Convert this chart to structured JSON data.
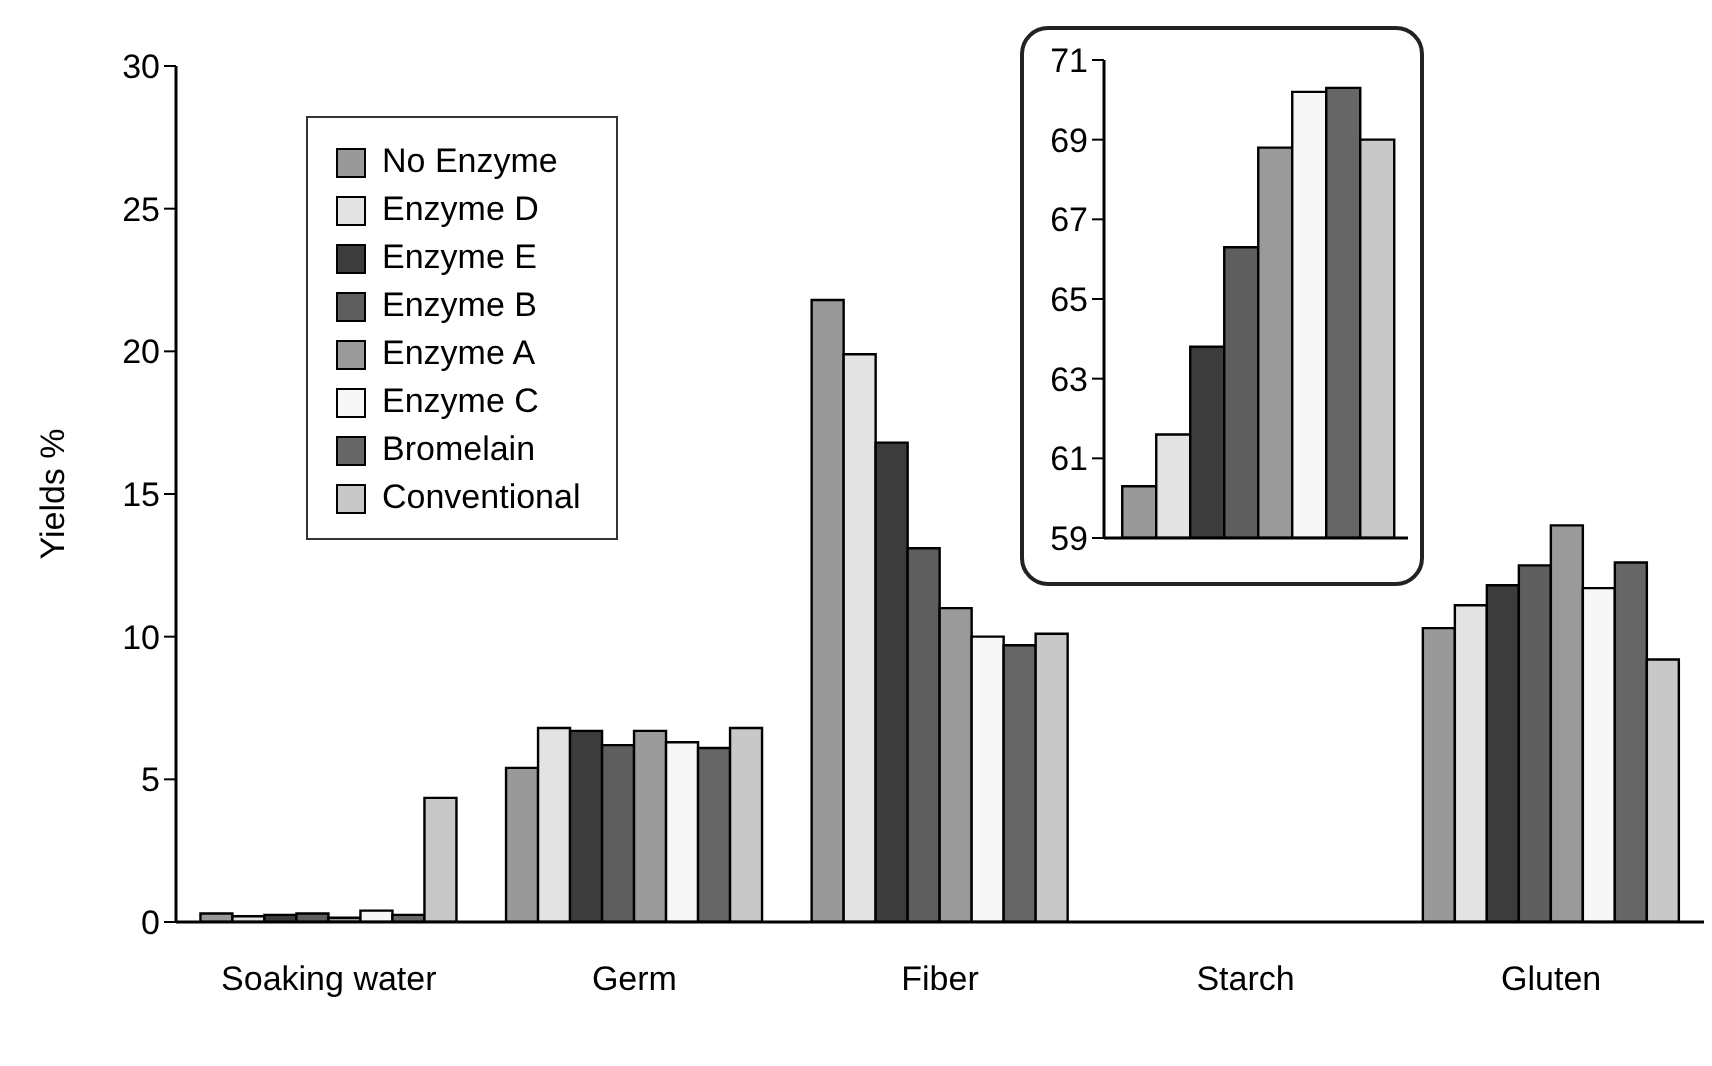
{
  "chart_data": [
    {
      "type": "bar",
      "ylabel": "Yields %",
      "categories": [
        "Soaking water",
        "Germ",
        "Fiber",
        "Starch",
        "Gluten"
      ],
      "series": [
        {
          "name": "No Enzyme",
          "color": "#999999",
          "values": [
            0.3,
            5.4,
            21.8,
            null,
            10.3
          ]
        },
        {
          "name": "Enzyme D",
          "color": "#e3e3e3",
          "values": [
            0.2,
            6.8,
            19.9,
            null,
            11.1
          ]
        },
        {
          "name": "Enzyme E",
          "color": "#3c3c3c",
          "values": [
            0.25,
            6.7,
            16.8,
            null,
            11.8
          ]
        },
        {
          "name": "Enzyme B",
          "color": "#5e5e5e",
          "values": [
            0.3,
            6.2,
            13.1,
            null,
            12.5
          ]
        },
        {
          "name": "Enzyme A",
          "color": "#9a9a9a",
          "values": [
            0.15,
            6.7,
            11.0,
            null,
            13.9
          ]
        },
        {
          "name": "Enzyme C",
          "color": "#f7f7f7",
          "values": [
            0.4,
            6.3,
            10.0,
            null,
            11.7
          ]
        },
        {
          "name": "Bromelain",
          "color": "#666666",
          "values": [
            0.25,
            6.1,
            9.7,
            null,
            12.6
          ]
        },
        {
          "name": "Conventional",
          "color": "#c8c8c8",
          "values": [
            4.35,
            6.8,
            10.1,
            null,
            9.2
          ]
        }
      ],
      "ylim": [
        0,
        30
      ],
      "yticks": [
        0,
        5,
        10,
        15,
        20,
        25,
        30
      ],
      "legend": "top left"
    },
    {
      "type": "bar",
      "categories": [
        null
      ],
      "series": [
        {
          "color": "#999999",
          "values": [
            60.3
          ]
        },
        {
          "color": "#e3e3e3",
          "values": [
            61.6
          ]
        },
        {
          "color": "#3c3c3c",
          "values": [
            63.8
          ]
        },
        {
          "color": "#5e5e5e",
          "values": [
            66.3
          ]
        },
        {
          "color": "#9a9a9a",
          "values": [
            68.8
          ]
        },
        {
          "color": "#f7f7f7",
          "values": [
            70.2
          ]
        },
        {
          "color": "#666666",
          "values": [
            70.3
          ]
        },
        {
          "color": "#c8c8c8",
          "values": [
            69.0
          ]
        }
      ],
      "ylim": [
        59,
        71
      ],
      "yticks": [
        59,
        61,
        63,
        65,
        67,
        69,
        71
      ],
      "tick_labels": "y"
    }
  ]
}
